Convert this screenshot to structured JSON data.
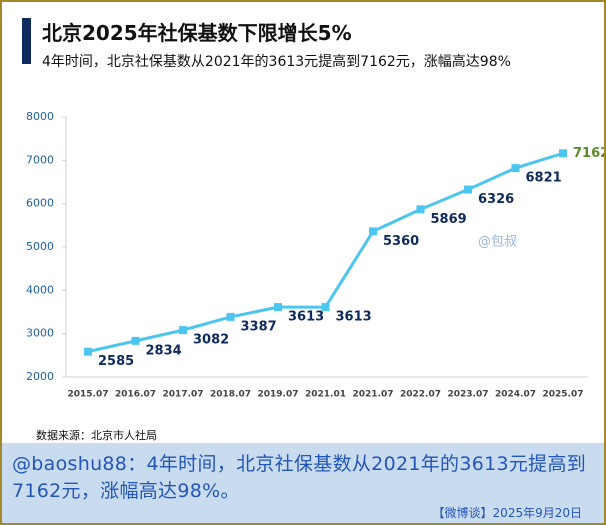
{
  "header": {
    "title": "北京2025年社保基数下限增长5%",
    "subtitle": "4年时间，北京社保基数从2021年的3613元提高到7162元，涨幅高达98%"
  },
  "chart_data": {
    "type": "line",
    "categories": [
      "2015.07",
      "2016.07",
      "2017.07",
      "2018.07",
      "2019.07",
      "2021.01",
      "2021.07",
      "2022.07",
      "2023.07",
      "2024.07",
      "2025.07"
    ],
    "values": [
      2585,
      2834,
      3082,
      3387,
      3613,
      3613,
      5360,
      5869,
      6326,
      6821,
      7162
    ],
    "color": "#4cc6ef",
    "label_color": "#0f2a5c",
    "highlight_color": "#5e8a2c",
    "ylim": [
      2000,
      8000
    ],
    "yticks": [
      2000,
      3000,
      4000,
      5000,
      6000,
      7000,
      8000
    ],
    "grid": false
  },
  "source": "数据来源：北京市人社局",
  "watermark": "@包叔",
  "post": {
    "text": "@baoshu88：4年时间，北京社保基数从2021年的3613元提高到7162元，涨幅高达98%。",
    "footer": "【微博谈】2025年9月20日"
  }
}
